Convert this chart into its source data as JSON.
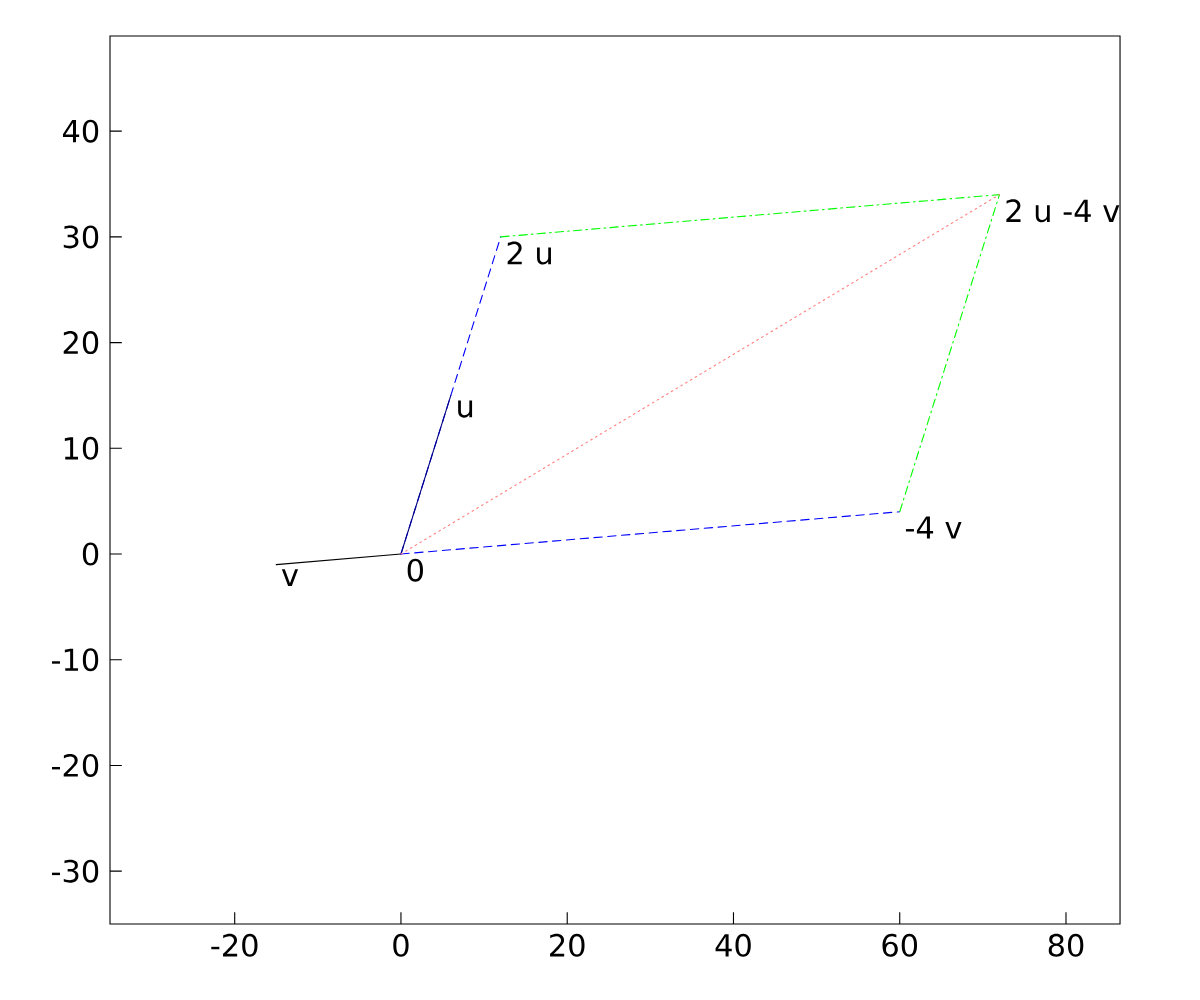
{
  "chart_data": {
    "type": "line",
    "xlim": [
      -35,
      86.5
    ],
    "ylim": [
      -35,
      49
    ],
    "xticks": [
      -20,
      0,
      20,
      40,
      60,
      80
    ],
    "yticks": [
      -30,
      -20,
      -10,
      0,
      10,
      20,
      30,
      40
    ],
    "grid": false,
    "marker": "none",
    "series": [
      {
        "color": "#000000",
        "line_style": "solid",
        "x": [
          0,
          -15
        ],
        "values": [
          0,
          -1
        ]
      },
      {
        "color": "#0000ff",
        "line_style": "dashed",
        "x": [
          0,
          12
        ],
        "values": [
          0,
          30
        ]
      },
      {
        "color": "#000080",
        "line_style": "solid",
        "x": [
          0,
          6
        ],
        "values": [
          0,
          15
        ]
      },
      {
        "color": "#0000ff",
        "line_style": "dashed",
        "x": [
          0,
          60
        ],
        "values": [
          0,
          4
        ]
      },
      {
        "color": "#00ff00",
        "line_style": "dashdot",
        "x": [
          12,
          72
        ],
        "values": [
          30,
          34
        ]
      },
      {
        "color": "#00ff00",
        "line_style": "dashdot",
        "x": [
          60,
          72
        ],
        "values": [
          4,
          34
        ]
      },
      {
        "color": "#ff8080",
        "line_style": "dotted",
        "x": [
          0,
          72
        ],
        "values": [
          0,
          34
        ]
      }
    ],
    "annotations": [
      {
        "text": "v",
        "x": -15,
        "y": -1
      },
      {
        "text": "0",
        "x": 0,
        "y": 0
      },
      {
        "text": "u",
        "x": 6,
        "y": 15
      },
      {
        "text": "2 u",
        "x": 12,
        "y": 30
      },
      {
        "text": "-4 v",
        "x": 60,
        "y": 4
      },
      {
        "text": "2 u -4 v",
        "x": 72,
        "y": 34
      }
    ]
  }
}
